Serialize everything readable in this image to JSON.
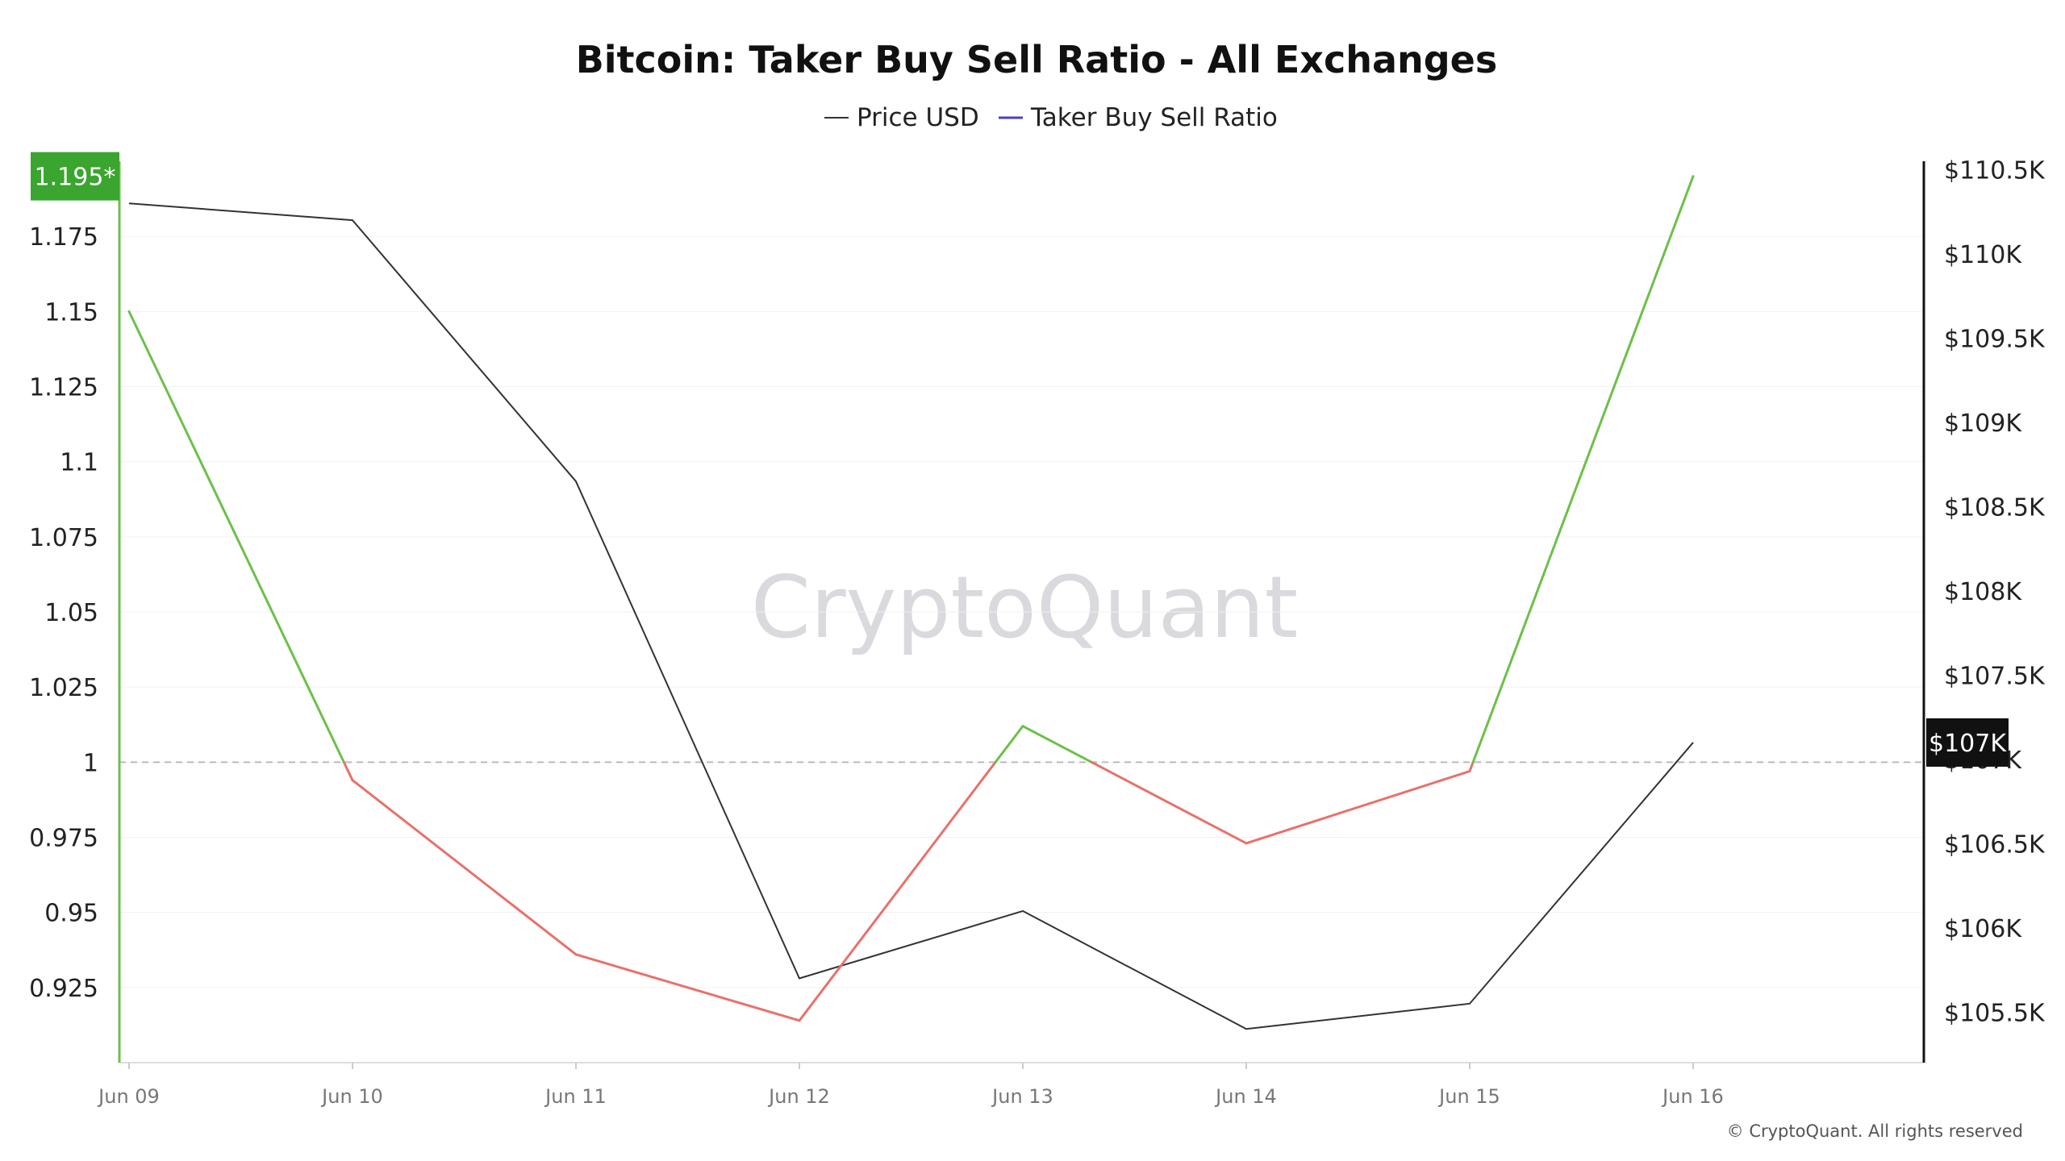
{
  "chart_data": {
    "type": "line",
    "title": "Bitcoin: Taker Buy Sell Ratio - All Exchanges",
    "watermark": "CryptoQuant",
    "copyright": "© CryptoQuant. All rights reserved",
    "categories": [
      "Jun 09",
      "Jun 10",
      "Jun 11",
      "Jun 12",
      "Jun 13",
      "Jun 14",
      "Jun 15",
      "Jun 16"
    ],
    "legend": {
      "placement": "top-center",
      "entries": [
        {
          "name": "Price USD",
          "color": "#333333"
        },
        {
          "name": "Taker Buy Sell Ratio",
          "color": "#4a3fc7"
        }
      ]
    },
    "series": [
      {
        "name": "Taker Buy Sell Ratio",
        "axis": "left",
        "values": [
          1.15,
          0.994,
          0.936,
          0.914,
          1.012,
          0.973,
          0.997,
          1.195
        ],
        "color_above": "#6cc04a",
        "color_below": "#e8716b"
      },
      {
        "name": "Price USD",
        "axis": "right",
        "values": [
          110300,
          110200,
          108650,
          105700,
          106100,
          105400,
          105550,
          107100
        ],
        "color": "#333333"
      }
    ],
    "left_axis": {
      "ylim": [
        0.9,
        1.2
      ],
      "ticks": [
        "0.925",
        "0.95",
        "0.975",
        "1",
        "1.025",
        "1.05",
        "1.075",
        "1.1",
        "1.125",
        "1.15",
        "1.175"
      ],
      "tick_values": [
        0.925,
        0.95,
        0.975,
        1.0,
        1.025,
        1.05,
        1.075,
        1.1,
        1.125,
        1.15,
        1.175
      ],
      "badge_label": "1.195*",
      "badge_value": 1.195,
      "badge_color": "#3aa52f",
      "reference_line": 1.0
    },
    "right_axis": {
      "ylim": [
        105200,
        110550
      ],
      "ticks": [
        "$105.5K",
        "$106K",
        "$106.5K",
        "$107K",
        "$107.5K",
        "$108K",
        "$108.5K",
        "$109K",
        "$109.5K",
        "$110K",
        "$110.5K"
      ],
      "tick_values": [
        105500,
        106000,
        106500,
        107000,
        107500,
        108000,
        108500,
        109000,
        109500,
        110000,
        110500
      ],
      "badge_label": "$107K",
      "badge_value": 107100,
      "badge_color": "#111111"
    },
    "grid": true
  }
}
